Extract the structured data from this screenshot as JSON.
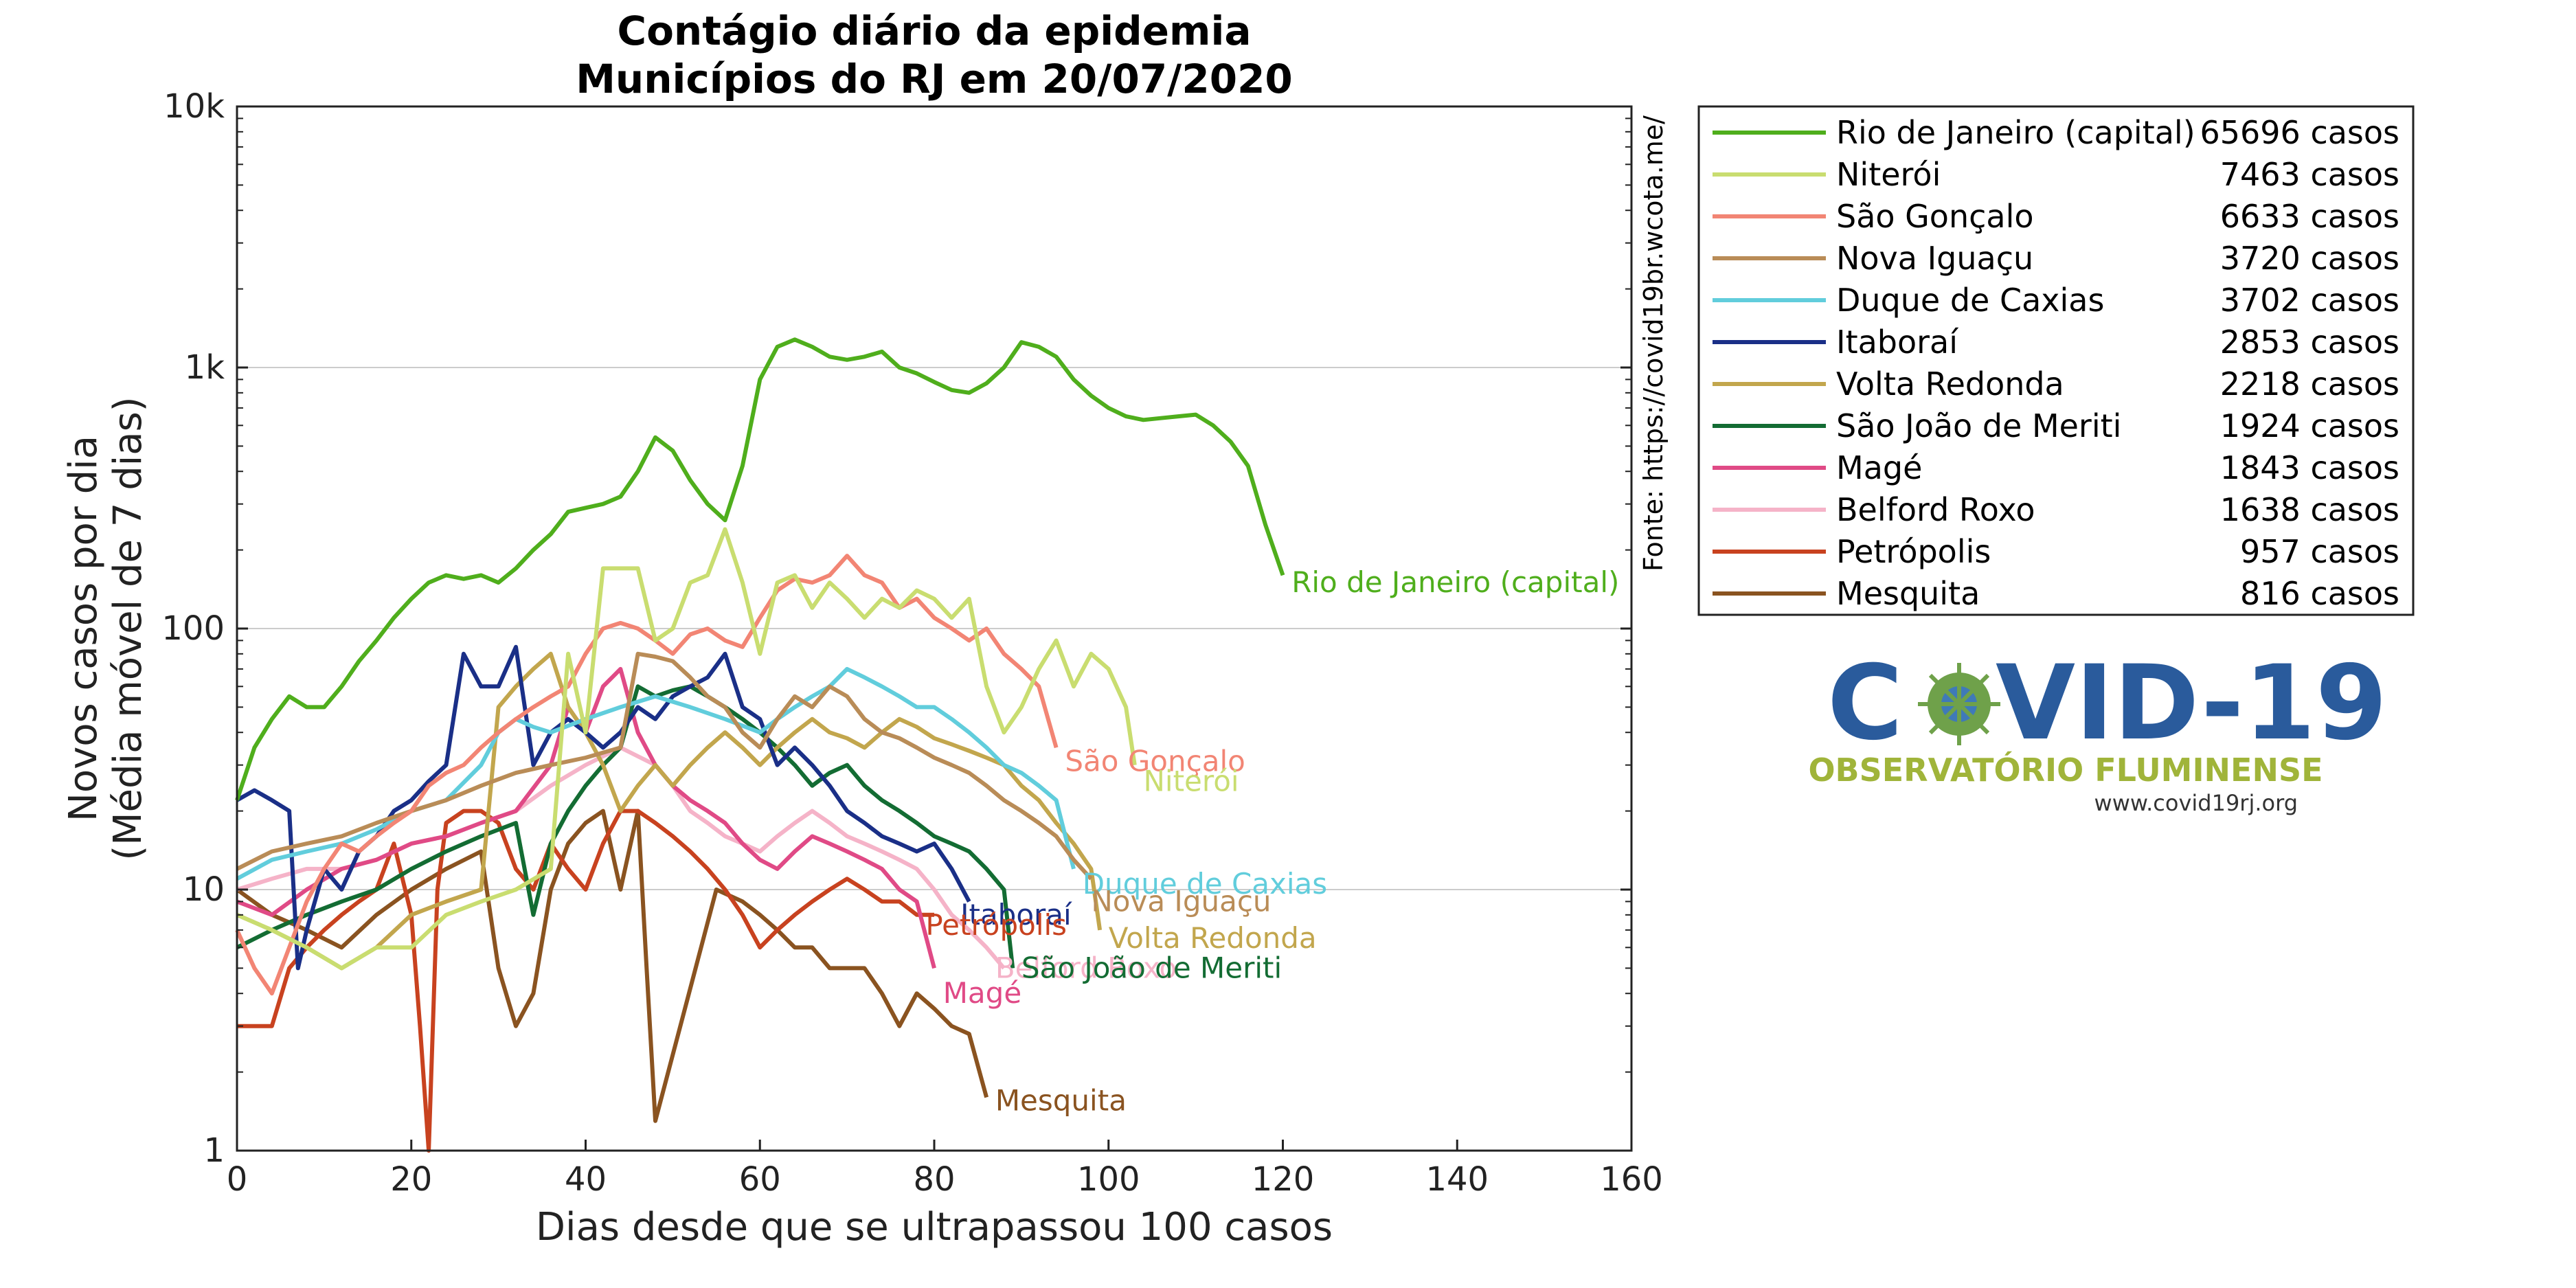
{
  "chart_data": {
    "type": "line",
    "title": "Contágio diário da epidemia",
    "subtitle": "Municípios do RJ em 20/07/2020",
    "xlabel": "Dias desde que se ultrapassou 100 casos",
    "ylabel": "Novos casos por dia",
    "ylabel2": "(Média móvel de 7 dias)",
    "source": "Fonte: https://covid19br.wcota.me/",
    "xlim": [
      0,
      160
    ],
    "ylim": [
      1,
      10000
    ],
    "yscale": "log",
    "grid": "horizontal",
    "legend_position": "outside-right",
    "x_ticks": [
      "0",
      "20",
      "40",
      "60",
      "80",
      "100",
      "120",
      "140",
      "160"
    ],
    "y_ticks": [
      "1",
      "10",
      "100",
      "1k",
      "10k"
    ],
    "series": [
      {
        "name": "Rio de Janeiro (capital)",
        "count": "65696 casos",
        "color": "#4fae1c",
        "x": [
          0,
          2,
          4,
          6,
          8,
          10,
          12,
          14,
          16,
          18,
          20,
          22,
          24,
          26,
          28,
          30,
          32,
          34,
          36,
          38,
          40,
          42,
          44,
          46,
          48,
          50,
          52,
          54,
          56,
          58,
          60,
          62,
          64,
          66,
          68,
          70,
          72,
          74,
          76,
          78,
          80,
          82,
          84,
          86,
          88,
          90,
          92,
          94,
          96,
          98,
          100,
          102,
          104,
          106,
          108,
          110,
          112,
          114,
          116,
          118,
          120
        ],
        "y": [
          22,
          35,
          45,
          55,
          50,
          50,
          60,
          75,
          90,
          110,
          130,
          150,
          160,
          155,
          160,
          150,
          170,
          200,
          230,
          280,
          290,
          300,
          320,
          400,
          540,
          480,
          370,
          300,
          260,
          420,
          900,
          1200,
          1280,
          1200,
          1100,
          1070,
          1100,
          1150,
          1000,
          950,
          880,
          820,
          800,
          870,
          1000,
          1250,
          1200,
          1100,
          900,
          780,
          700,
          650,
          630,
          640,
          650,
          660,
          600,
          520,
          420,
          250,
          160
        ]
      },
      {
        "name": "Niterói",
        "count": "7463 casos",
        "color": "#c9dd70",
        "x": [
          0,
          4,
          8,
          12,
          16,
          20,
          24,
          28,
          32,
          36,
          38,
          40,
          42,
          44,
          46,
          48,
          50,
          52,
          54,
          56,
          58,
          60,
          62,
          64,
          66,
          68,
          70,
          72,
          74,
          76,
          78,
          80,
          82,
          84,
          86,
          88,
          90,
          92,
          94,
          96,
          98,
          100,
          102,
          103
        ],
        "y": [
          8,
          7,
          6,
          5,
          6,
          6,
          8,
          9,
          10,
          12,
          80,
          40,
          170,
          170,
          170,
          90,
          100,
          150,
          160,
          240,
          150,
          80,
          150,
          160,
          120,
          150,
          130,
          110,
          130,
          120,
          140,
          130,
          110,
          130,
          60,
          40,
          50,
          70,
          90,
          60,
          80,
          70,
          50,
          30
        ]
      },
      {
        "name": "São Gonçalo",
        "count": "6633 casos",
        "color": "#f28574",
        "x": [
          0,
          2,
          4,
          6,
          8,
          10,
          12,
          14,
          16,
          18,
          20,
          22,
          24,
          26,
          28,
          30,
          32,
          34,
          36,
          38,
          40,
          42,
          44,
          46,
          48,
          50,
          52,
          54,
          56,
          58,
          60,
          62,
          64,
          66,
          68,
          70,
          72,
          74,
          76,
          78,
          80,
          82,
          84,
          86,
          88,
          90,
          92,
          94
        ],
        "y": [
          7,
          5,
          4,
          6,
          9,
          12,
          15,
          14,
          16,
          18,
          20,
          25,
          28,
          30,
          35,
          40,
          45,
          50,
          55,
          60,
          80,
          100,
          105,
          100,
          90,
          80,
          95,
          100,
          90,
          85,
          110,
          140,
          155,
          150,
          160,
          190,
          160,
          150,
          120,
          130,
          110,
          100,
          90,
          100,
          80,
          70,
          60,
          35
        ]
      },
      {
        "name": "Nova Iguaçu",
        "count": "3720 casos",
        "color": "#b98c57",
        "x": [
          0,
          4,
          8,
          12,
          16,
          20,
          24,
          28,
          32,
          36,
          40,
          44,
          46,
          48,
          50,
          52,
          54,
          56,
          58,
          60,
          62,
          64,
          66,
          68,
          70,
          72,
          74,
          76,
          78,
          80,
          82,
          84,
          86,
          88,
          90,
          92,
          94,
          96,
          98
        ],
        "y": [
          12,
          14,
          15,
          16,
          18,
          20,
          22,
          25,
          28,
          30,
          32,
          35,
          80,
          78,
          75,
          65,
          55,
          50,
          40,
          35,
          45,
          55,
          50,
          60,
          55,
          45,
          40,
          38,
          35,
          32,
          30,
          28,
          25,
          22,
          20,
          18,
          16,
          13,
          11
        ]
      },
      {
        "name": "Duque de Caxias",
        "count": "3702 casos",
        "color": "#61cddc",
        "x": [
          0,
          4,
          8,
          12,
          16,
          20,
          24,
          28,
          30,
          32,
          34,
          36,
          40,
          44,
          48,
          52,
          56,
          60,
          62,
          64,
          66,
          68,
          70,
          72,
          74,
          76,
          78,
          80,
          82,
          84,
          86,
          88,
          90,
          92,
          94,
          96
        ],
        "y": [
          11,
          13,
          14,
          15,
          17,
          20,
          22,
          30,
          40,
          45,
          42,
          40,
          45,
          50,
          55,
          50,
          45,
          40,
          45,
          50,
          55,
          60,
          70,
          65,
          60,
          55,
          50,
          50,
          45,
          40,
          35,
          30,
          28,
          25,
          22,
          12
        ]
      },
      {
        "name": "Itaboraí",
        "count": "2853 casos",
        "color": "#1a2f87",
        "x": [
          0,
          2,
          4,
          6,
          7,
          8,
          10,
          12,
          14,
          16,
          18,
          20,
          22,
          24,
          26,
          28,
          30,
          32,
          34,
          36,
          38,
          40,
          42,
          44,
          46,
          48,
          50,
          52,
          54,
          56,
          58,
          60,
          62,
          64,
          66,
          68,
          70,
          72,
          74,
          76,
          78,
          80,
          82,
          84
        ],
        "y": [
          22,
          24,
          22,
          20,
          5,
          7,
          12,
          10,
          14,
          16,
          20,
          22,
          26,
          30,
          80,
          60,
          60,
          85,
          30,
          40,
          45,
          40,
          35,
          40,
          50,
          45,
          55,
          60,
          65,
          80,
          50,
          45,
          30,
          35,
          30,
          25,
          20,
          18,
          16,
          15,
          14,
          15,
          12,
          9
        ]
      },
      {
        "name": "Volta Redonda",
        "count": "2218 casos",
        "color": "#c2a64d",
        "x": [
          0,
          4,
          8,
          12,
          16,
          20,
          24,
          28,
          30,
          32,
          34,
          36,
          38,
          40,
          42,
          44,
          46,
          48,
          50,
          52,
          54,
          56,
          58,
          60,
          62,
          64,
          66,
          68,
          70,
          72,
          74,
          76,
          78,
          80,
          82,
          84,
          86,
          88,
          90,
          92,
          94,
          96,
          98,
          99
        ],
        "y": [
          8,
          7,
          6,
          5,
          6,
          8,
          9,
          10,
          50,
          60,
          70,
          80,
          50,
          40,
          30,
          20,
          25,
          30,
          25,
          30,
          35,
          40,
          35,
          30,
          35,
          40,
          45,
          40,
          38,
          35,
          40,
          45,
          42,
          38,
          36,
          34,
          32,
          30,
          25,
          22,
          18,
          15,
          12,
          7
        ]
      },
      {
        "name": "São João de Meriti",
        "count": "1924 casos",
        "color": "#136c33",
        "x": [
          0,
          4,
          8,
          12,
          16,
          20,
          24,
          28,
          32,
          34,
          36,
          38,
          40,
          42,
          44,
          46,
          48,
          50,
          52,
          54,
          56,
          58,
          60,
          62,
          64,
          66,
          68,
          70,
          72,
          74,
          76,
          78,
          80,
          82,
          84,
          86,
          88,
          89
        ],
        "y": [
          6,
          7,
          8,
          9,
          10,
          12,
          14,
          16,
          18,
          8,
          15,
          20,
          25,
          30,
          35,
          60,
          55,
          58,
          60,
          55,
          50,
          45,
          40,
          35,
          30,
          25,
          28,
          30,
          25,
          22,
          20,
          18,
          16,
          15,
          14,
          12,
          10,
          5
        ]
      },
      {
        "name": "Magé",
        "count": "1843 casos",
        "color": "#e04a86",
        "x": [
          0,
          4,
          8,
          12,
          16,
          20,
          24,
          28,
          32,
          36,
          38,
          40,
          42,
          44,
          46,
          48,
          50,
          52,
          54,
          56,
          58,
          60,
          62,
          64,
          66,
          68,
          70,
          72,
          74,
          76,
          78,
          80
        ],
        "y": [
          9,
          8,
          10,
          12,
          13,
          15,
          16,
          18,
          20,
          30,
          50,
          40,
          60,
          70,
          40,
          30,
          25,
          22,
          20,
          18,
          15,
          13,
          12,
          14,
          16,
          15,
          14,
          13,
          12,
          10,
          9,
          5
        ]
      },
      {
        "name": "Belford Roxo",
        "count": "1638 casos",
        "color": "#f5b3c8",
        "x": [
          0,
          4,
          8,
          12,
          16,
          20,
          24,
          28,
          32,
          36,
          40,
          44,
          48,
          50,
          52,
          54,
          56,
          58,
          60,
          62,
          64,
          66,
          68,
          70,
          72,
          74,
          76,
          78,
          80,
          82,
          84,
          86,
          88
        ],
        "y": [
          10,
          11,
          12,
          12,
          13,
          15,
          16,
          18,
          20,
          25,
          30,
          35,
          30,
          25,
          20,
          18,
          16,
          15,
          14,
          16,
          18,
          20,
          18,
          16,
          15,
          14,
          13,
          12,
          10,
          8,
          7,
          6,
          5
        ]
      },
      {
        "name": "Petrópolis",
        "count": "957 casos",
        "color": "#c8421f",
        "x": [
          0,
          2,
          4,
          6,
          8,
          10,
          12,
          14,
          16,
          18,
          20,
          21,
          22,
          23,
          24,
          26,
          28,
          30,
          32,
          34,
          36,
          38,
          40,
          42,
          44,
          46,
          48,
          50,
          52,
          54,
          56,
          58,
          60,
          62,
          64,
          66,
          68,
          70,
          72,
          74,
          76,
          78,
          80
        ],
        "y": [
          3,
          3,
          3,
          5,
          6,
          7,
          8,
          9,
          10,
          15,
          8,
          3,
          1,
          10,
          18,
          20,
          20,
          18,
          12,
          10,
          15,
          12,
          10,
          15,
          20,
          20,
          18,
          16,
          14,
          12,
          10,
          8,
          6,
          7,
          8,
          9,
          10,
          11,
          10,
          9,
          9,
          8,
          8
        ]
      },
      {
        "name": "Mesquita",
        "count": "816 casos",
        "color": "#8a5320",
        "x": [
          0,
          4,
          8,
          12,
          16,
          20,
          24,
          28,
          30,
          32,
          34,
          36,
          38,
          40,
          42,
          44,
          46,
          47,
          48,
          55,
          58,
          60,
          62,
          64,
          66,
          68,
          70,
          72,
          74,
          76,
          78,
          80,
          82,
          84,
          86
        ],
        "y": [
          10,
          8,
          7,
          6,
          8,
          10,
          12,
          14,
          5,
          3,
          4,
          10,
          15,
          18,
          20,
          10,
          20,
          5,
          1.3,
          10,
          9,
          8,
          7,
          6,
          6,
          5,
          5,
          5,
          4,
          3,
          4,
          3.5,
          3,
          2.8,
          1.6
        ]
      }
    ],
    "end_labels": [
      {
        "text": "Rio de Janeiro (capital)",
        "color": "#4fae1c",
        "x": 121,
        "y": 150
      },
      {
        "text": "São Gonçalo",
        "color": "#f28574",
        "x": 95,
        "y": 31
      },
      {
        "text": "Niterói",
        "color": "#c9dd70",
        "x": 104,
        "y": 26
      },
      {
        "text": "Duque de Caxias",
        "color": "#61cddc",
        "x": 97,
        "y": 10.5
      },
      {
        "text": "Nova Iguaçu",
        "color": "#b98c57",
        "x": 98,
        "y": 9
      },
      {
        "text": "Itaboraí",
        "color": "#1a2f87",
        "x": 83,
        "y": 8
      },
      {
        "text": "Petrópolis",
        "color": "#c8421f",
        "x": 79,
        "y": 7.3
      },
      {
        "text": "Volta Redonda",
        "color": "#c2a64d",
        "x": 100,
        "y": 6.5
      },
      {
        "text": "Belford Roxo",
        "color": "#f5b3c8",
        "x": 87,
        "y": 5
      },
      {
        "text": "São João de Meriti",
        "color": "#136c33",
        "x": 90,
        "y": 5
      },
      {
        "text": "Magé",
        "color": "#e04a86",
        "x": 81,
        "y": 4
      },
      {
        "text": "Mesquita",
        "color": "#8a5320",
        "x": 87,
        "y": 1.55
      }
    ]
  },
  "logo": {
    "title": "COVID-19",
    "subtitle": "OBSERVATÓRIO FLUMINENSE",
    "url": "www.covid19rj.org",
    "color_primary": "#2a5b9c",
    "color_accent": "#a0b43a"
  }
}
